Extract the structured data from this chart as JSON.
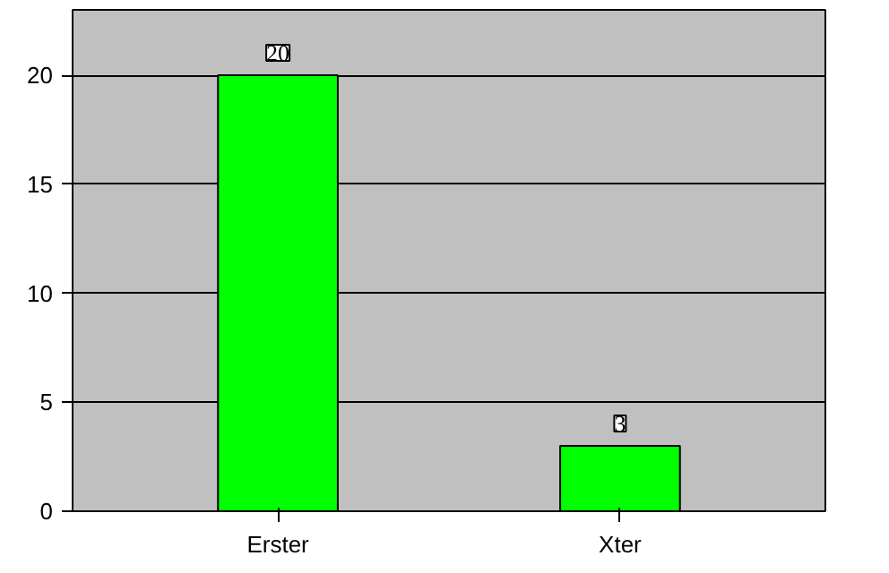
{
  "chart_data": {
    "type": "bar",
    "categories": [
      "Erster",
      "Xter"
    ],
    "values": [
      20,
      3
    ],
    "color": "#00ff00",
    "ylim": [
      0,
      23
    ],
    "yticks": [
      0,
      5,
      10,
      15,
      20
    ],
    "grid": "y",
    "data_labels": true
  }
}
